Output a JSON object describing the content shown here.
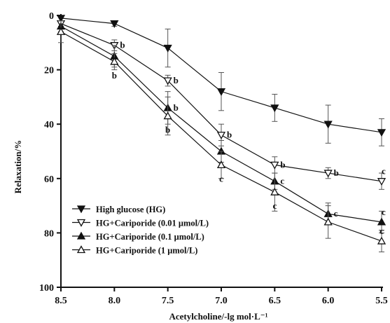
{
  "chart_data": {
    "type": "line",
    "xlabel": "Acetylcholine/-lg mol·L⁻¹",
    "ylabel": "Relaxation/%",
    "x": [
      8.5,
      8.0,
      7.5,
      7.0,
      6.5,
      6.0,
      5.5
    ],
    "x_ticks": [
      "8.5",
      "8.0",
      "7.5",
      "7.0",
      "6.5",
      "6.0",
      "5.5"
    ],
    "xlim": [
      8.5,
      5.5
    ],
    "ylim": [
      0,
      100
    ],
    "y_inverted": true,
    "y_ticks": [
      "0",
      "20",
      "40",
      "60",
      "80",
      "100"
    ],
    "grid": false,
    "legend_position": "bottom-left",
    "series": [
      {
        "name": "High glucose (HG)",
        "marker": "filled-triangle-down",
        "values": [
          1,
          3,
          12,
          28,
          34,
          40,
          43
        ],
        "errors": [
          1,
          1,
          7,
          7,
          5,
          7,
          5
        ],
        "labels": []
      },
      {
        "name": "HG+Cariporide (0.01 μmol/L)",
        "marker": "open-triangle-down",
        "values": [
          3,
          11,
          24,
          44,
          55,
          58,
          61
        ],
        "errors": [
          1,
          2,
          2,
          4,
          3,
          2,
          3
        ],
        "labels": [
          "",
          "b",
          "b",
          "b",
          "b",
          "b",
          "c"
        ]
      },
      {
        "name": "HG+Cariporide (0.1 μmol/L)",
        "marker": "filled-triangle-up",
        "values": [
          4,
          15,
          34,
          50,
          61,
          73,
          76
        ],
        "errors": [
          2,
          4,
          6,
          4,
          3,
          4,
          4
        ],
        "labels": [
          "",
          "",
          "b",
          "",
          "c",
          "c",
          "c"
        ]
      },
      {
        "name": "HG+Cariporide (1 μmol/L)",
        "marker": "open-triangle-up",
        "values": [
          6,
          17,
          37,
          55,
          65,
          76,
          83
        ],
        "errors": [
          4,
          3,
          7,
          5,
          7,
          6,
          4
        ],
        "labels": [
          "",
          "b",
          "b",
          "c",
          "c",
          "",
          "c"
        ]
      }
    ]
  }
}
